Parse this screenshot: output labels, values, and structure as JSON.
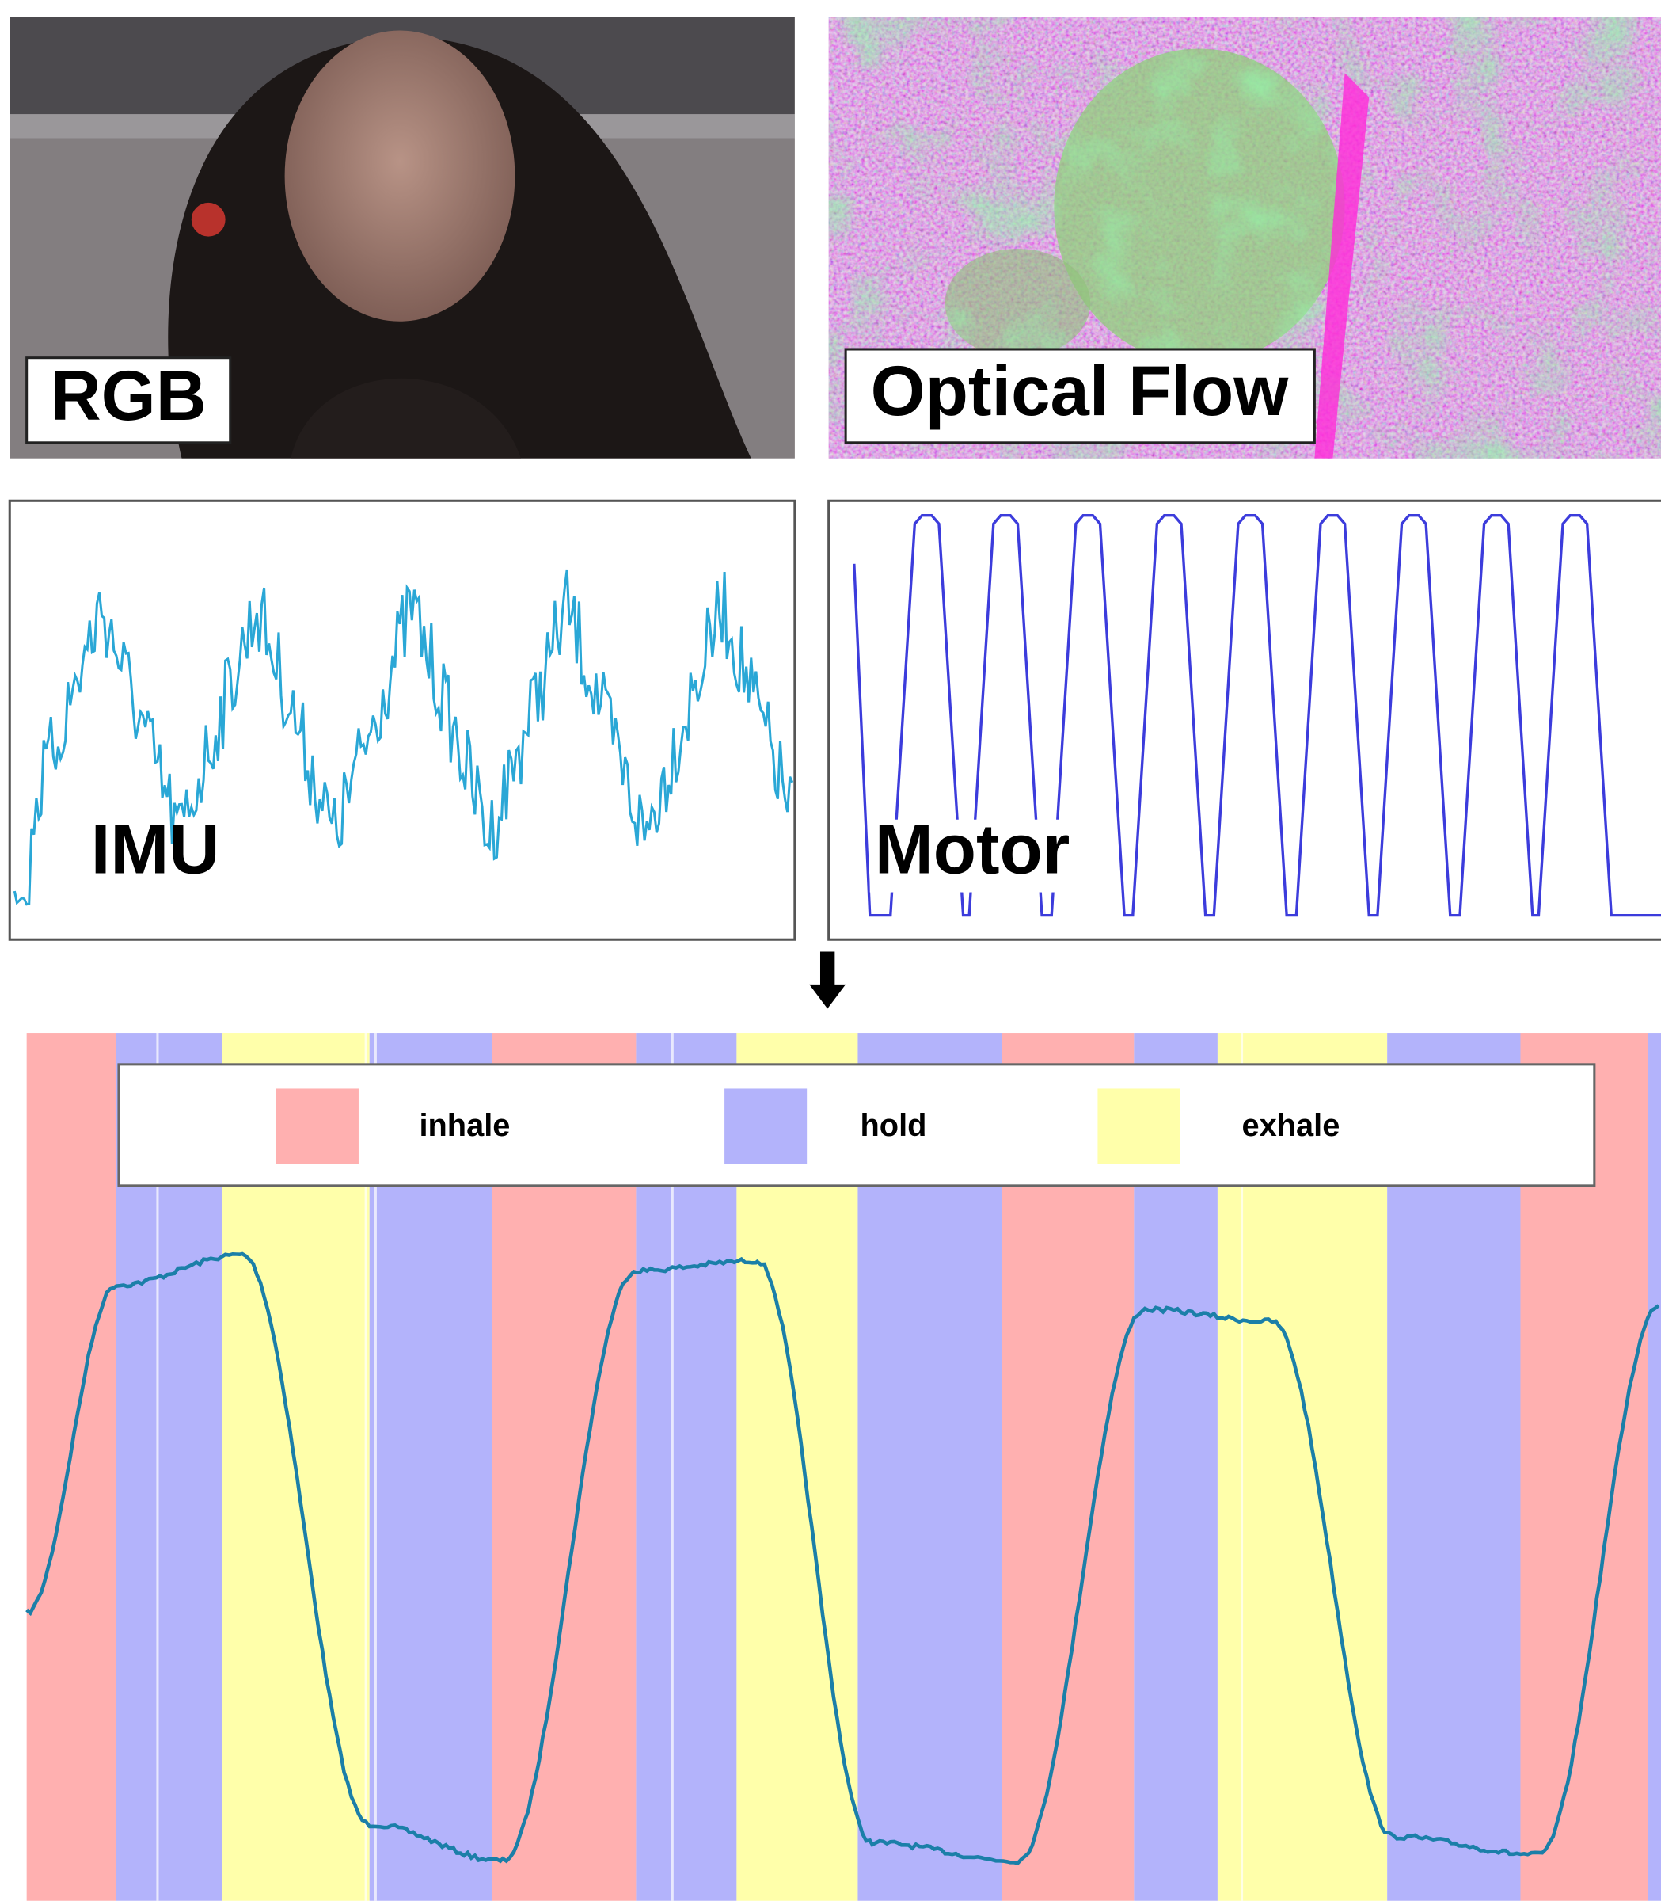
{
  "panels": {
    "rgb": {
      "label": "RGB"
    },
    "optical_flow": {
      "label": "Optical Flow"
    },
    "imu": {
      "label": "IMU"
    },
    "motor": {
      "label": "Motor"
    }
  },
  "legend": [
    {
      "label": "inhale",
      "color": "#ffb0b0"
    },
    {
      "label": "hold",
      "color": "#b3b3fb"
    },
    {
      "label": "exhale",
      "color": "#ffffaa"
    }
  ]
}
